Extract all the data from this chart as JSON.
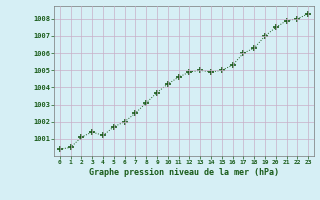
{
  "x": [
    0,
    1,
    2,
    3,
    4,
    5,
    6,
    7,
    8,
    9,
    10,
    11,
    12,
    13,
    14,
    15,
    16,
    17,
    18,
    19,
    20,
    21,
    22,
    23
  ],
  "y": [
    1000.4,
    1000.5,
    1001.1,
    1001.4,
    1001.2,
    1001.7,
    1002.0,
    1002.5,
    1003.1,
    1003.7,
    1004.2,
    1004.6,
    1004.9,
    1005.0,
    1004.9,
    1005.0,
    1005.3,
    1006.0,
    1006.3,
    1007.0,
    1007.5,
    1007.9,
    1008.0,
    1008.3
  ],
  "line_color": "#1a5c1a",
  "marker_color": "#1a5c1a",
  "bg_color": "#d6eff5",
  "grid_color": "#c8afc8",
  "plot_bg": "#d6eff5",
  "xlabel": "Graphe pression niveau de la mer (hPa)",
  "xlabel_color": "#1a5c1a",
  "tick_label_color": "#1a5c1a",
  "ylim": [
    1000.0,
    1008.75
  ],
  "xlim": [
    -0.5,
    23.5
  ],
  "yticks": [
    1001,
    1002,
    1003,
    1004,
    1005,
    1006,
    1007,
    1008
  ],
  "xticks": [
    0,
    1,
    2,
    3,
    4,
    5,
    6,
    7,
    8,
    9,
    10,
    11,
    12,
    13,
    14,
    15,
    16,
    17,
    18,
    19,
    20,
    21,
    22,
    23
  ],
  "xtick_labels": [
    "0",
    "1",
    "2",
    "3",
    "4",
    "5",
    "6",
    "7",
    "8",
    "9",
    "10",
    "11",
    "12",
    "13",
    "14",
    "15",
    "16",
    "17",
    "18",
    "19",
    "20",
    "21",
    "22",
    "23"
  ]
}
